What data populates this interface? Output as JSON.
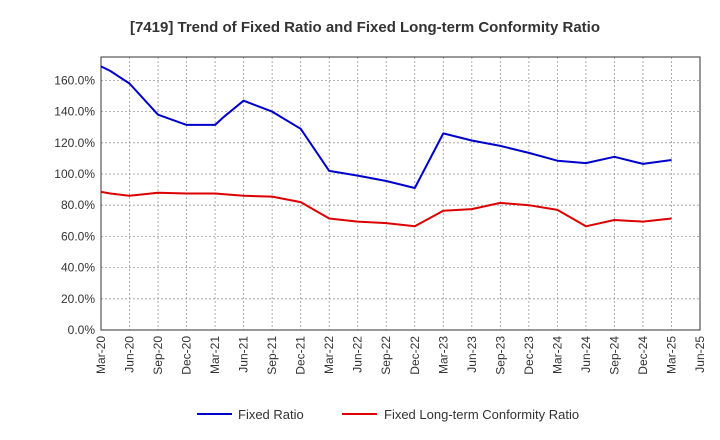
{
  "chart_data": {
    "type": "line",
    "title": "[7419]  Trend of Fixed Ratio and Fixed Long-term Conformity Ratio",
    "xlabel": "",
    "ylabel": "",
    "x": [
      "Mar-20",
      "Apr-20",
      "Jun-20",
      "Sep-20",
      "Dec-20",
      "Mar-21",
      "Apr-21",
      "Jun-21",
      "Sep-21",
      "Dec-21",
      "Mar-22",
      "Jun-22",
      "Sep-22",
      "Dec-22",
      "Mar-23",
      "Jun-23",
      "Sep-23",
      "Dec-23",
      "Mar-24",
      "Jun-24",
      "Sep-24",
      "Dec-24",
      "Mar-25"
    ],
    "x_ticks": [
      "Mar-20",
      "Jun-20",
      "Sep-20",
      "Dec-20",
      "Mar-21",
      "Jun-21",
      "Sep-21",
      "Dec-21",
      "Mar-22",
      "Jun-22",
      "Sep-22",
      "Dec-22",
      "Mar-23",
      "Jun-23",
      "Sep-23",
      "Dec-23",
      "Mar-24",
      "Jun-24",
      "Sep-24",
      "Dec-24",
      "Mar-25",
      "Jun-25"
    ],
    "x_tick_positions": [
      0,
      1,
      2,
      3,
      4,
      5,
      6,
      7,
      8,
      9,
      10,
      11,
      12,
      13,
      14,
      15,
      16,
      17,
      18,
      19,
      20,
      21
    ],
    "x_positions": [
      0,
      0.33,
      1,
      2,
      3,
      4,
      4.33,
      5,
      6,
      7,
      8,
      9,
      10,
      11,
      12,
      13,
      14,
      15,
      16,
      17,
      18,
      19,
      20
    ],
    "xlim": [
      0,
      21
    ],
    "ylim": [
      0,
      175
    ],
    "y_ticks": [
      0,
      20,
      40,
      60,
      80,
      100,
      120,
      140,
      160
    ],
    "y_tick_labels": [
      "0.0%",
      "20.0%",
      "40.0%",
      "60.0%",
      "80.0%",
      "100.0%",
      "120.0%",
      "140.0%",
      "160.0%"
    ],
    "grid": true,
    "legend_position": "bottom",
    "series": [
      {
        "name": "Fixed Ratio",
        "color": "#0000cc",
        "values": [
          169,
          166,
          158,
          138,
          131.5,
          131.5,
          137,
          147,
          140,
          129,
          102,
          99,
          95.5,
          91,
          126,
          121.5,
          118,
          113.5,
          108.5,
          107,
          111,
          106.5,
          109
        ]
      },
      {
        "name": "Fixed Long-term Conformity Ratio",
        "color": "#dd0000",
        "values": [
          88.5,
          87.5,
          86,
          88,
          87.5,
          87.5,
          87,
          86,
          85.5,
          82,
          71.5,
          69.5,
          68.5,
          66.5,
          76.5,
          77.5,
          81.5,
          80,
          77,
          66.5,
          70.5,
          69.5,
          71.5
        ]
      }
    ]
  }
}
